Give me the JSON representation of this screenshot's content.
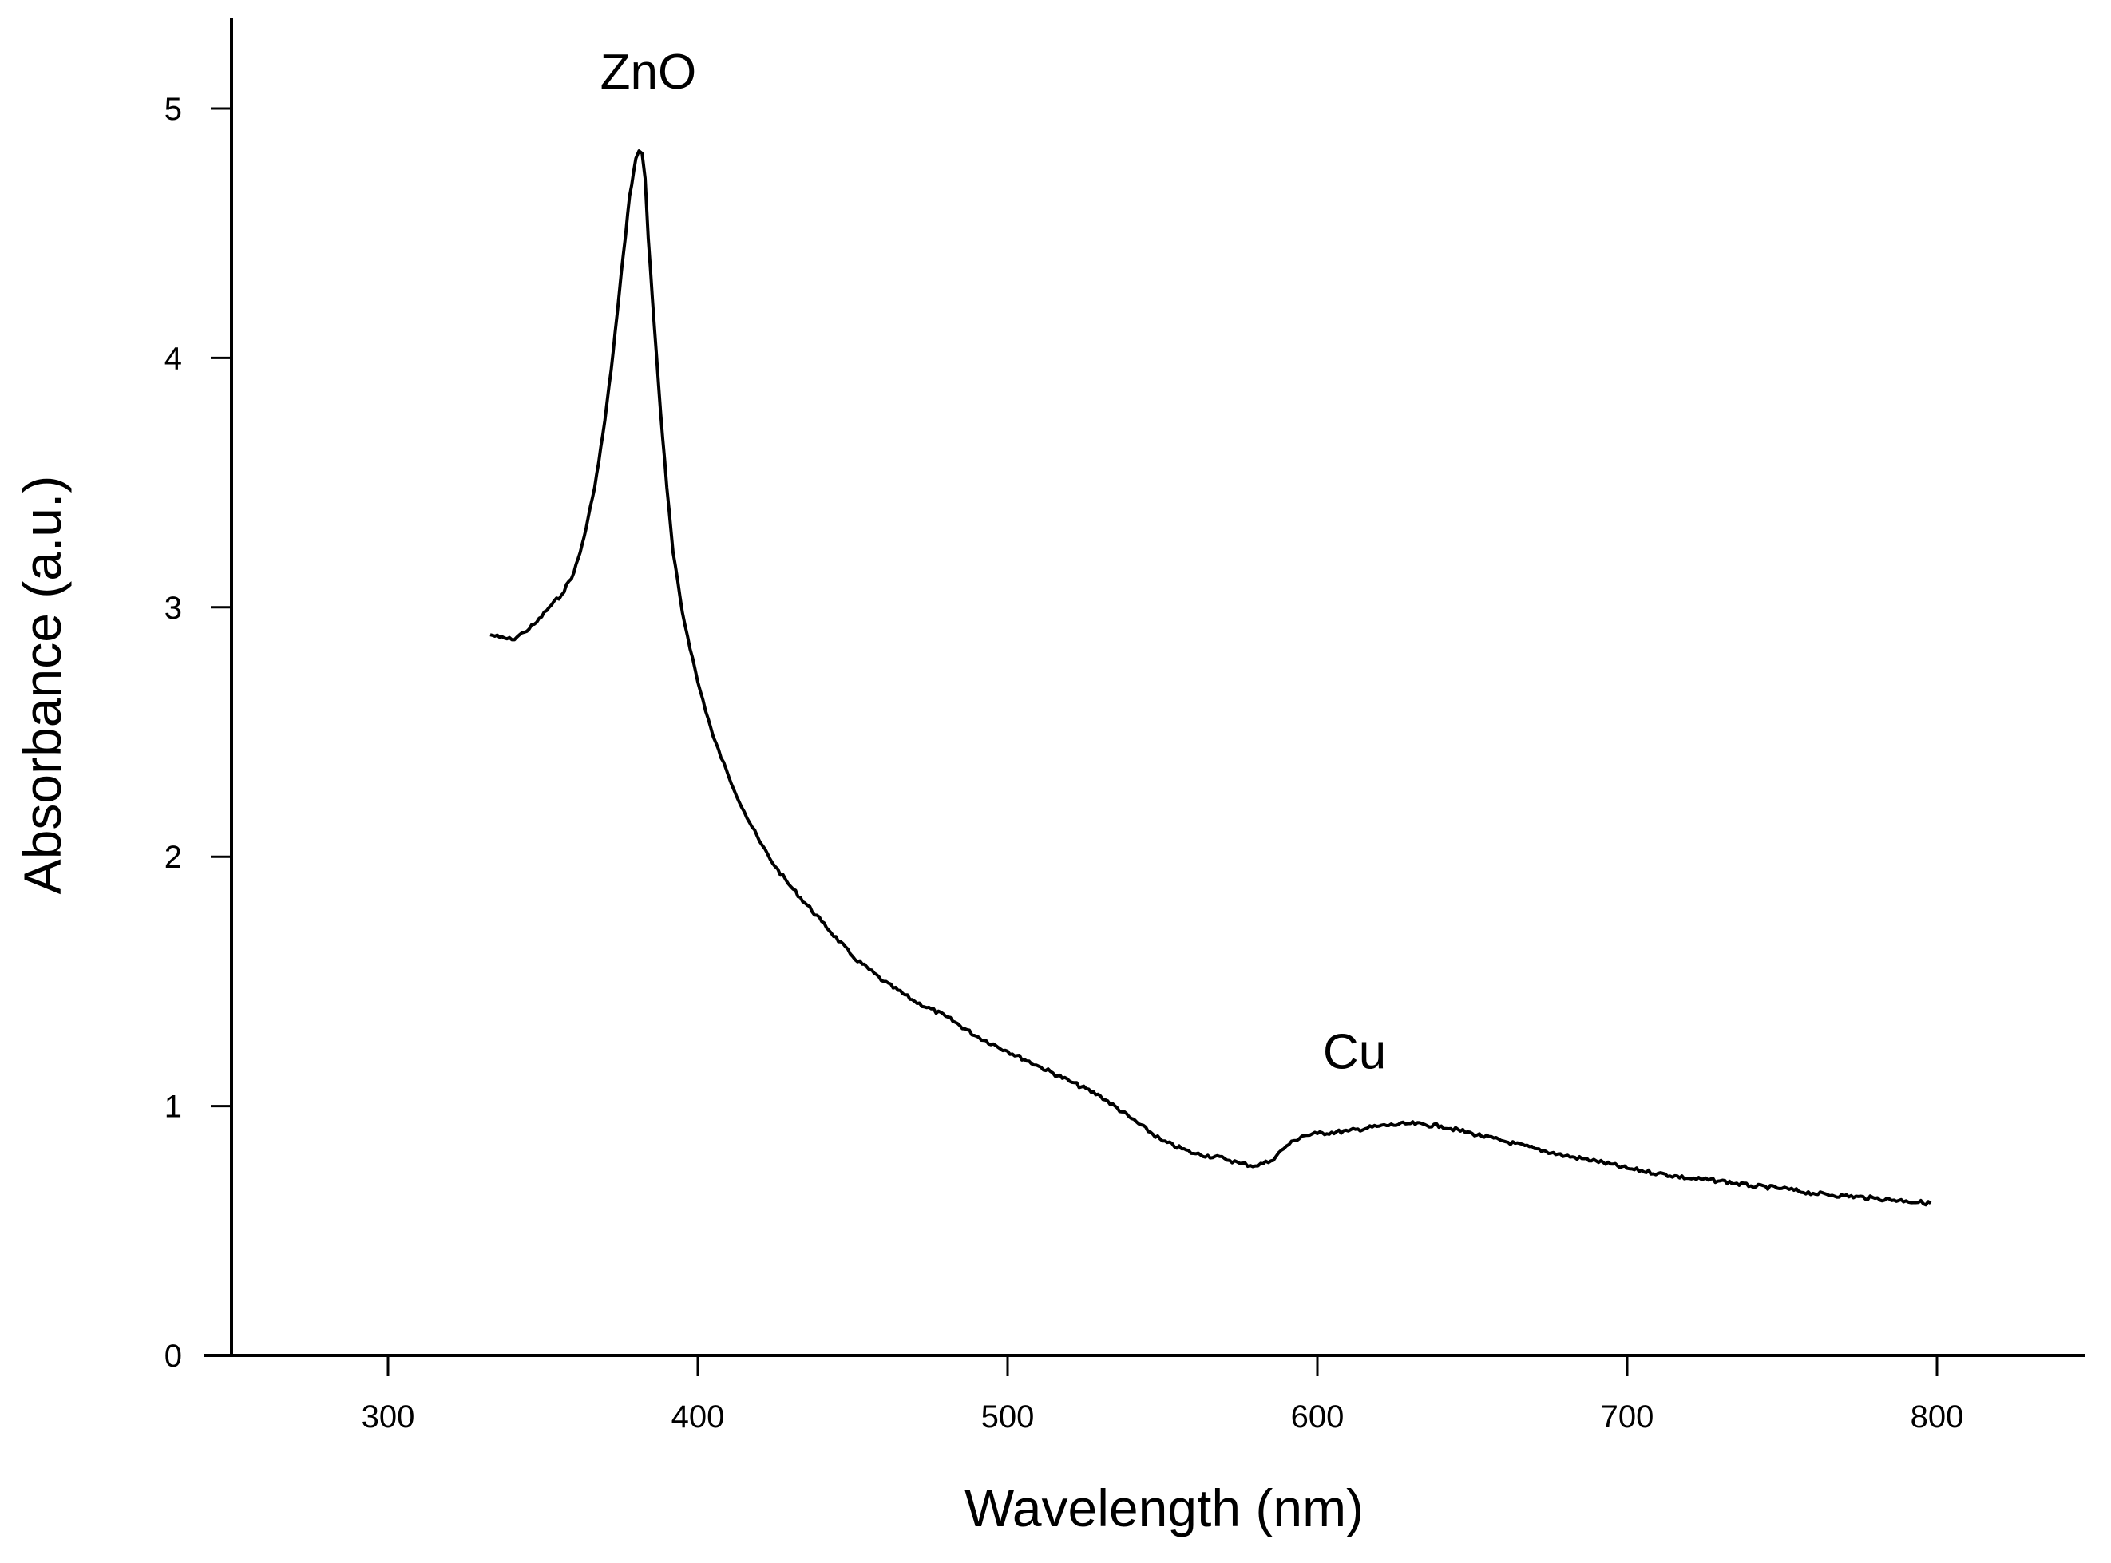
{
  "chart_data": {
    "type": "line",
    "title": "",
    "xlabel": "Wavelength (nm)",
    "ylabel": "Absorbance (a.u.)",
    "xlim": [
      250,
      850
    ],
    "ylim": [
      0,
      5.35
    ],
    "xticks": [
      300,
      400,
      500,
      600,
      700,
      800
    ],
    "yticks": [
      0,
      1,
      2,
      3,
      4,
      5
    ],
    "xtick_labels": [
      "300",
      "400",
      "500",
      "600",
      "700",
      "800"
    ],
    "ytick_labels": [
      "0",
      "1",
      "2",
      "3",
      "4",
      "5"
    ],
    "grid": false,
    "line_color": "#000000",
    "annotations": [
      {
        "text": "ZnO",
        "x": 384,
        "y": 5.08
      },
      {
        "text": "Cu",
        "x": 612,
        "y": 1.15
      }
    ],
    "series": [
      {
        "name": "Absorbance",
        "x": [
          333,
          336,
          340,
          344,
          348,
          352,
          356,
          360,
          362,
          364,
          366,
          368,
          370,
          372,
          374,
          376,
          378,
          380,
          381,
          382,
          383,
          384,
          386,
          388,
          390,
          392,
          395,
          400,
          405,
          410,
          415,
          420,
          425,
          430,
          440,
          450,
          460,
          470,
          480,
          490,
          500,
          510,
          520,
          530,
          540,
          550,
          560,
          570,
          575,
          580,
          585,
          590,
          595,
          600,
          610,
          620,
          630,
          640,
          650,
          660,
          670,
          680,
          690,
          700,
          710,
          720,
          730,
          740,
          750,
          760,
          770,
          780,
          790,
          798
        ],
        "y": [
          2.89,
          2.88,
          2.87,
          2.9,
          2.94,
          3.0,
          3.05,
          3.14,
          3.22,
          3.32,
          3.44,
          3.58,
          3.75,
          3.95,
          4.18,
          4.42,
          4.65,
          4.8,
          4.83,
          4.82,
          4.72,
          4.48,
          4.12,
          3.78,
          3.48,
          3.22,
          2.98,
          2.7,
          2.48,
          2.32,
          2.18,
          2.06,
          1.96,
          1.88,
          1.74,
          1.6,
          1.5,
          1.42,
          1.36,
          1.28,
          1.22,
          1.16,
          1.1,
          1.04,
          0.95,
          0.86,
          0.81,
          0.79,
          0.77,
          0.76,
          0.78,
          0.84,
          0.88,
          0.89,
          0.9,
          0.92,
          0.93,
          0.92,
          0.89,
          0.86,
          0.83,
          0.8,
          0.78,
          0.75,
          0.73,
          0.71,
          0.7,
          0.68,
          0.67,
          0.65,
          0.64,
          0.63,
          0.62,
          0.61
        ]
      }
    ]
  }
}
